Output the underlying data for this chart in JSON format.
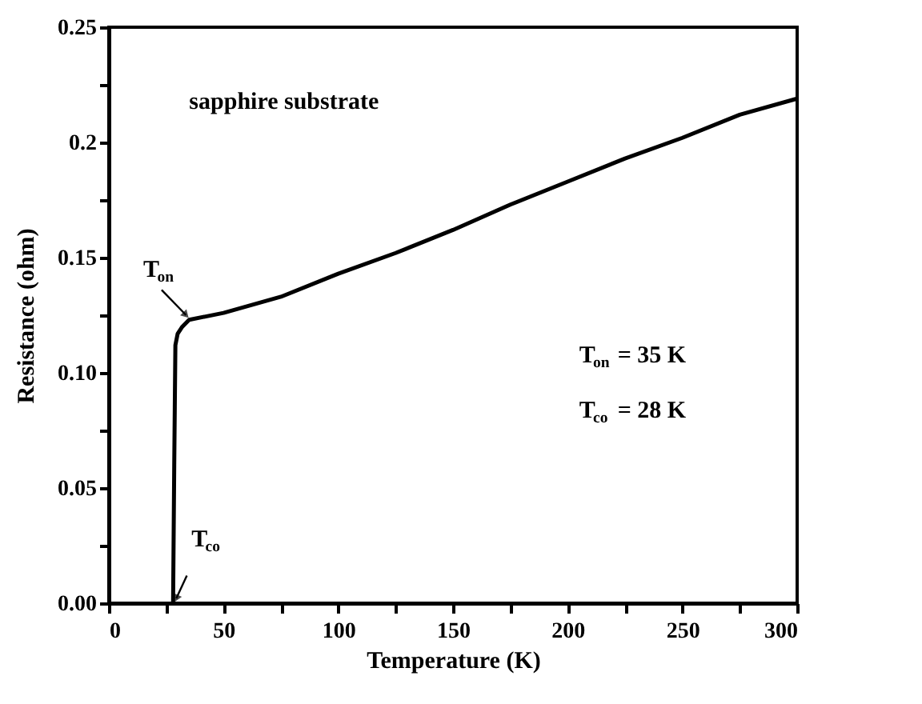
{
  "chart_data": {
    "type": "line",
    "xlabel": "Temperature (K)",
    "ylabel": "Resistance (ohm)",
    "x": [
      28,
      28.5,
      29,
      30,
      32,
      35,
      50,
      75,
      100,
      125,
      150,
      175,
      200,
      225,
      250,
      275,
      300
    ],
    "series": [
      {
        "color": "#000000",
        "values": [
          0,
          0.06,
          0.112,
          0.117,
          0.12,
          0.123,
          0.126,
          0.133,
          0.143,
          0.152,
          0.162,
          0.173,
          0.183,
          0.193,
          0.202,
          0.212,
          0.219
        ]
      }
    ],
    "xlim": [
      0,
      300
    ],
    "xticks": [
      0,
      {
        "value": 25,
        "label": null
      },
      50,
      {
        "value": 75,
        "label": null
      },
      100,
      {
        "value": 125,
        "label": null
      },
      150,
      {
        "value": 175,
        "label": null
      },
      200,
      {
        "value": 225,
        "label": null
      },
      250,
      {
        "value": 275,
        "label": null
      },
      300
    ],
    "ylim": [
      0,
      0.25
    ],
    "yticks": [
      {
        "value": 0,
        "label": "0.00"
      },
      {
        "value": 0.025,
        "label": null
      },
      {
        "value": 0.05,
        "label": "0.05"
      },
      {
        "value": 0.075,
        "label": null
      },
      {
        "value": 0.1,
        "label": "0.10"
      },
      {
        "value": 0.125,
        "label": null
      },
      {
        "value": 0.15,
        "label": "0.15"
      },
      {
        "value": 0.175,
        "label": null
      },
      {
        "value": 0.2,
        "label": "0.2"
      },
      {
        "value": 0.225,
        "label": null
      },
      {
        "value": 0.25,
        "label": "0.25"
      }
    ],
    "annotations": [
      "sapphire substrate",
      {
        "text": "T$_{on}$",
        "x": 35,
        "y": 0.123
      },
      {
        "text": "T$_{co}$",
        "x": 28,
        "y": 0
      },
      "T$_{on}$ = 35 K",
      "T$_{co}$ = 28 K"
    ],
    "grid": false,
    "marker": "none",
    "line_style": "solid"
  }
}
